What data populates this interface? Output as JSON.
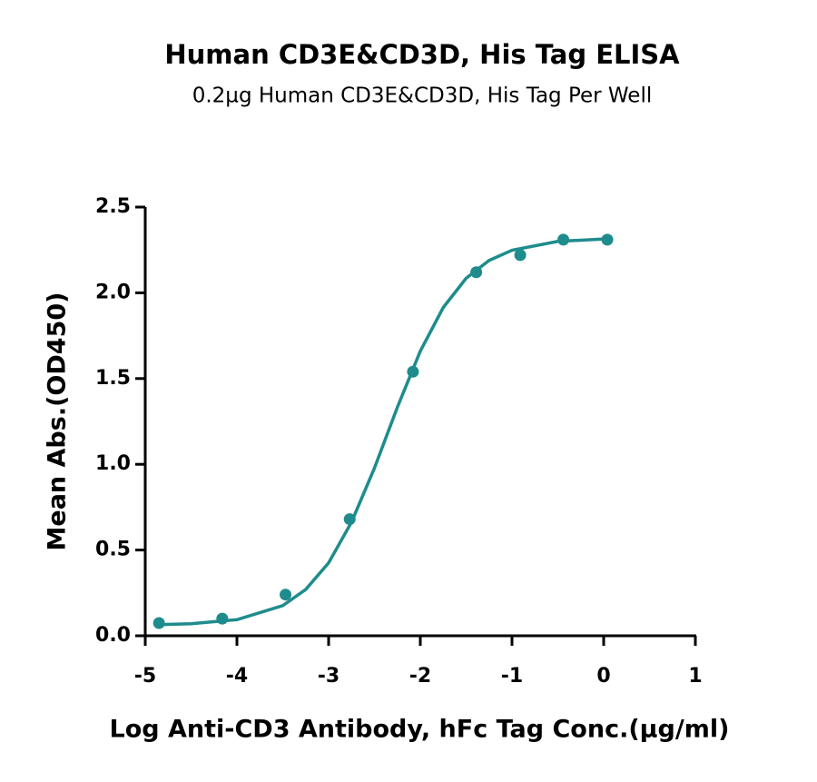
{
  "chart_data": {
    "type": "scatter",
    "title": "Human CD3E&CD3D, His Tag ELISA",
    "subtitle": "0.2µg Human CD3E&CD3D, His Tag Per Well",
    "x_label": "Log Anti-CD3 Antibody, hFc Tag Conc.(µg/ml)",
    "y_label": "Mean Abs.(OD450)",
    "xlim": [
      -5,
      1
    ],
    "xticks": [
      -5,
      -4,
      -3,
      -2,
      -1,
      0,
      1
    ],
    "ylim": [
      0,
      2.5
    ],
    "yticks": [
      {
        "value": 0,
        "label": "0.0"
      },
      0.5,
      {
        "value": 1,
        "label": "1.0"
      },
      1.5,
      {
        "value": 2,
        "label": "2.0"
      },
      2.5
    ],
    "grid": false,
    "series": [
      {
        "type": "scatter",
        "color": "#1e8c8c",
        "x": [
          -4.85,
          -4.16,
          -3.47,
          -2.77,
          -2.08,
          -1.39,
          -0.91,
          -0.44,
          0.04
        ],
        "values": [
          0.074,
          0.1,
          0.24,
          0.68,
          1.54,
          2.12,
          2.22,
          2.31,
          2.31
        ]
      },
      {
        "type": "line",
        "color": "#1e8c8c",
        "x": [
          -4.9,
          -4.5,
          -4.0,
          -3.5,
          -3.25,
          -3.0,
          -2.75,
          -2.5,
          -2.25,
          -2.0,
          -1.75,
          -1.5,
          -1.25,
          -1.0,
          -0.5,
          0.05
        ],
        "values": [
          0.064,
          0.07,
          0.094,
          0.176,
          0.27,
          0.425,
          0.663,
          0.978,
          1.333,
          1.66,
          1.914,
          2.085,
          2.189,
          2.248,
          2.3,
          2.315
        ]
      }
    ]
  }
}
